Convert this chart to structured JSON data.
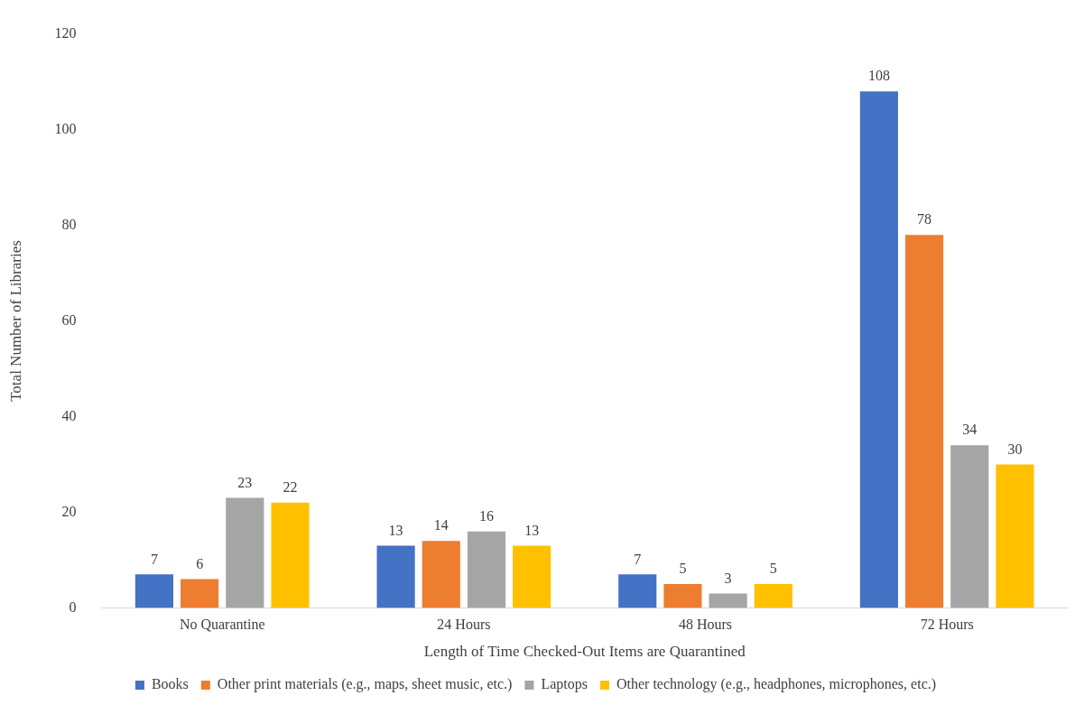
{
  "chart_data": {
    "type": "bar",
    "xlabel": "Length of Time Checked-Out Items are Quarantined",
    "ylabel": "Total Number of Libraries",
    "categories": [
      "No Quarantine",
      "24 Hours",
      "48 Hours",
      "72 Hours"
    ],
    "series": [
      {
        "name": "Books",
        "color": "#4472c4",
        "values": [
          7,
          13,
          7,
          108
        ]
      },
      {
        "name": "Other print materials (e.g., maps, sheet music, etc.)",
        "color": "#ed7d31",
        "values": [
          6,
          14,
          5,
          78
        ]
      },
      {
        "name": "Laptops",
        "color": "#a5a5a5",
        "values": [
          23,
          16,
          3,
          34
        ]
      },
      {
        "name": "Other technology (e.g., headphones, microphones, etc.)",
        "color": "#ffc000",
        "values": [
          22,
          13,
          5,
          30
        ]
      }
    ],
    "ylim": [
      0,
      120
    ],
    "yticks": [
      0,
      20,
      40,
      60,
      80,
      100,
      120
    ],
    "grid": false,
    "legend": "bottom",
    "data_labels": true
  }
}
